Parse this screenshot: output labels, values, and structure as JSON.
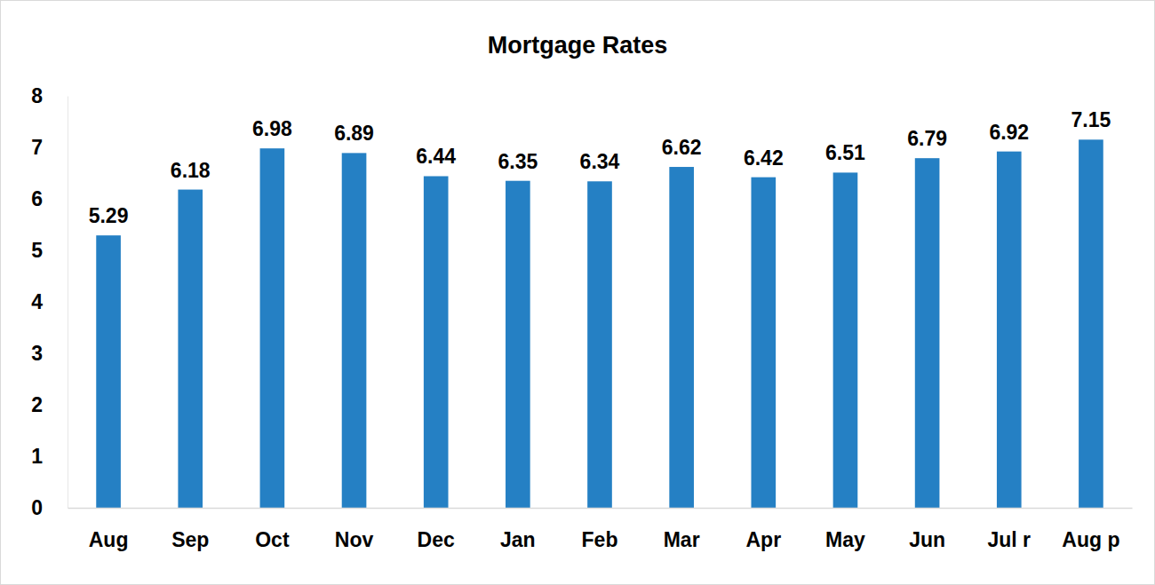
{
  "chart_data": {
    "type": "bar",
    "title": "Mortgage Rates",
    "categories": [
      "Aug",
      "Sep",
      "Oct",
      "Nov",
      "Dec",
      "Jan",
      "Feb",
      "Mar",
      "Apr",
      "May",
      "Jun",
      "Jul r",
      "Aug p"
    ],
    "values": [
      5.29,
      6.18,
      6.98,
      6.89,
      6.44,
      6.35,
      6.34,
      6.62,
      6.42,
      6.51,
      6.79,
      6.92,
      7.15
    ],
    "color": "#2580c4",
    "ylim": [
      0,
      8
    ],
    "yticks": [
      0,
      1,
      2,
      3,
      4,
      5,
      6,
      7,
      8
    ],
    "grid": false,
    "data_labels": true
  }
}
